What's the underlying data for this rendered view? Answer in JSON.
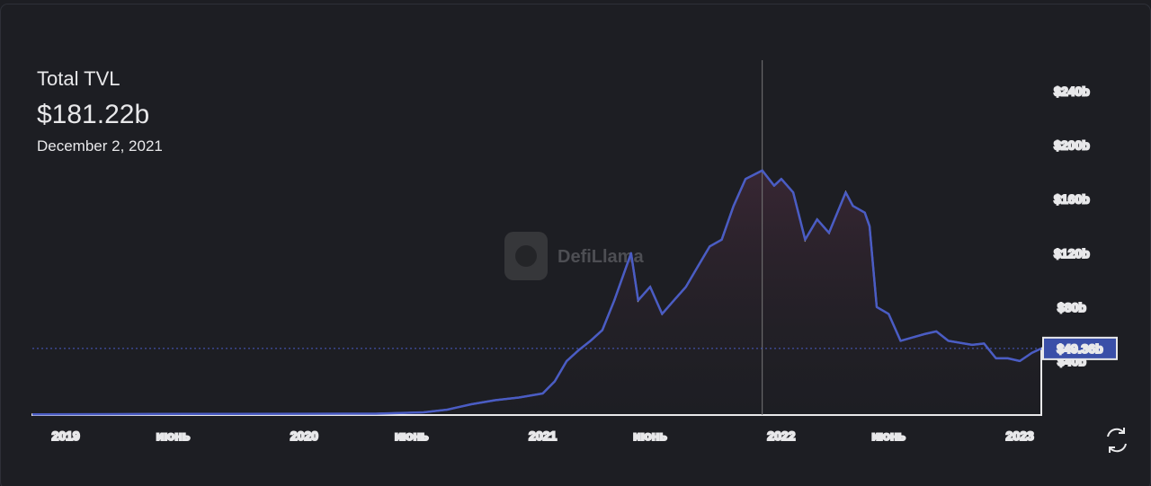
{
  "chart_data": {
    "type": "area",
    "title": "Total TVL",
    "watermark": "DefiLlama",
    "hover": {
      "x": 2021.92,
      "value": 181.22,
      "value_label": "$181.22b",
      "date": "December 2, 2021"
    },
    "color": "#4a5cc4",
    "x": [
      2018.86,
      2019.5,
      2020.0,
      2020.3,
      2020.5,
      2020.6,
      2020.7,
      2020.8,
      2020.9,
      2021.0,
      2021.05,
      2021.1,
      2021.15,
      2021.2,
      2021.25,
      2021.3,
      2021.35,
      2021.37,
      2021.4,
      2021.45,
      2021.5,
      2021.55,
      2021.6,
      2021.65,
      2021.7,
      2021.75,
      2021.8,
      2021.85,
      2021.92,
      2021.97,
      2022.0,
      2022.05,
      2022.1,
      2022.15,
      2022.2,
      2022.27,
      2022.3,
      2022.35,
      2022.37,
      2022.4,
      2022.45,
      2022.5,
      2022.6,
      2022.65,
      2022.7,
      2022.8,
      2022.85,
      2022.9,
      2022.95,
      2023.0,
      2023.05,
      2023.09
    ],
    "values": [
      0.5,
      0.8,
      0.9,
      1,
      2,
      4,
      8,
      11,
      13,
      16,
      25,
      40,
      48,
      55,
      63,
      85,
      110,
      120,
      85,
      95,
      75,
      85,
      95,
      110,
      125,
      130,
      155,
      175,
      181.22,
      170,
      175,
      165,
      130,
      145,
      135,
      165,
      155,
      150,
      140,
      80,
      75,
      55,
      60,
      62,
      55,
      52,
      53,
      42,
      42,
      40,
      46,
      49.36
    ],
    "value_labels": {
      "51": "$49.36b"
    },
    "xlim": [
      2018.86,
      2023.09
    ],
    "xticks": [
      {
        "value": 2019,
        "label": "2019"
      },
      {
        "value": 2019.45,
        "label": "июнь"
      },
      {
        "value": 2020,
        "label": "2020"
      },
      {
        "value": 2020.45,
        "label": "июнь"
      },
      {
        "value": 2021,
        "label": "2021"
      },
      {
        "value": 2021.45,
        "label": "июнь"
      },
      {
        "value": 2022,
        "label": "2022"
      },
      {
        "value": 2022.45,
        "label": "июнь"
      },
      {
        "value": 2023,
        "label": "2023"
      }
    ],
    "ylim": [
      0,
      263
    ],
    "yticks": [
      {
        "value": 40,
        "label": "$40b"
      },
      {
        "value": 80,
        "label": "$80b"
      },
      {
        "value": 120,
        "label": "$120b"
      },
      {
        "value": 160,
        "label": "$160b"
      },
      {
        "value": 200,
        "label": "$200b"
      },
      {
        "value": 240,
        "label": "$240b"
      }
    ]
  }
}
